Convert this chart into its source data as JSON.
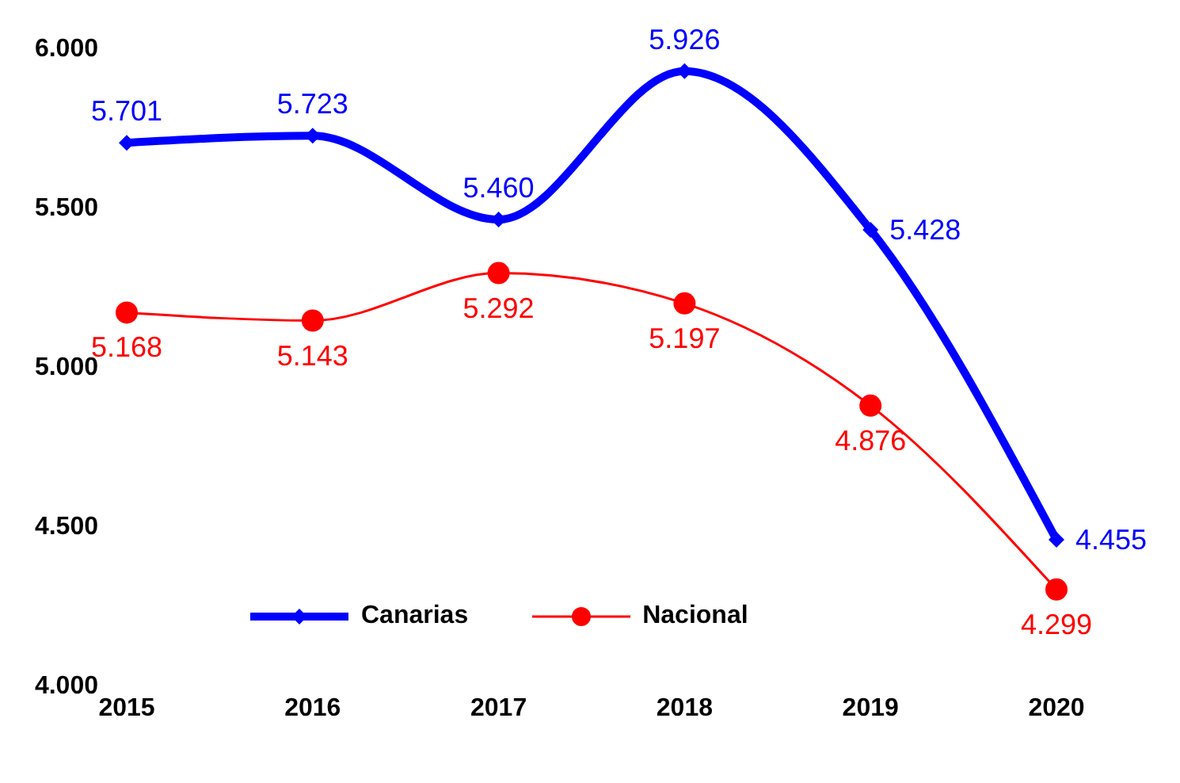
{
  "chart_data": {
    "type": "line",
    "categories": [
      "2015",
      "2016",
      "2017",
      "2018",
      "2019",
      "2020"
    ],
    "series": [
      {
        "name": "Canarias",
        "color": "#0000ff",
        "marker": "diamond",
        "values": [
          5701,
          5723,
          5460,
          5926,
          5428,
          4455
        ],
        "value_labels": [
          "5.701",
          "5.723",
          "5.460",
          "5.926",
          "5.428",
          "4.455"
        ]
      },
      {
        "name": "Nacional",
        "color": "#ff0000",
        "marker": "circle",
        "values": [
          5168,
          5143,
          5292,
          5197,
          4876,
          4299
        ],
        "value_labels": [
          "5.168",
          "5.143",
          "5.292",
          "5.197",
          "4.876",
          "4.299"
        ]
      }
    ],
    "ylim": [
      4000,
      6000
    ],
    "yticks": [
      {
        "value": 4000,
        "label": "4.000"
      },
      {
        "value": 4500,
        "label": "4.500"
      },
      {
        "value": 5000,
        "label": "5.000"
      },
      {
        "value": 5500,
        "label": "5.500"
      },
      {
        "value": 6000,
        "label": "6.000"
      }
    ],
    "grid": false,
    "legend": "bottom",
    "line_style": "solid"
  }
}
